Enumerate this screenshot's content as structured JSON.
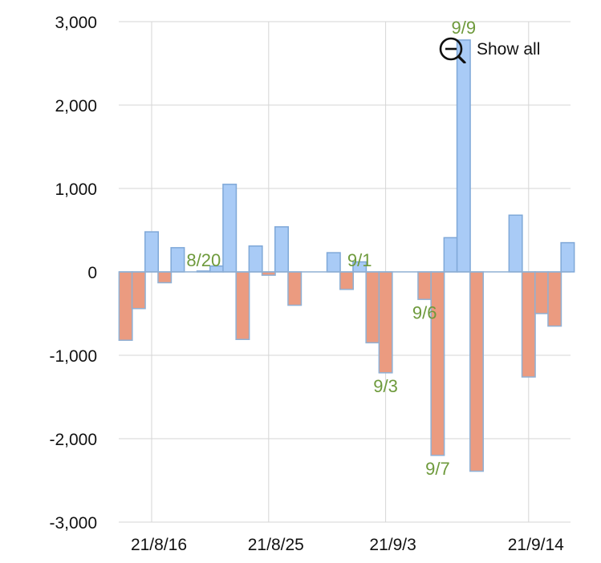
{
  "controls": {
    "show_all_label": "Show all",
    "show_all_icon": "zoom-out-icon"
  },
  "colors": {
    "positive": "#a9cbf6",
    "negative": "#eb9b80",
    "annotation": "#6e9a3c",
    "grid": "#d6d6d6"
  },
  "chart_data": {
    "type": "bar",
    "title": "",
    "xlabel": "",
    "ylabel": "",
    "ylim": [
      -3000,
      3000
    ],
    "yticks": [
      3000,
      2000,
      1000,
      0,
      -1000,
      -2000,
      -3000
    ],
    "ytick_labels": [
      "3,000",
      "2,000",
      "1,000",
      "0",
      "-1,000",
      "-2,000",
      "-3,000"
    ],
    "xtick_labels": [
      {
        "label": "21/8/16",
        "date": "2021-08-16"
      },
      {
        "label": "21/8/25",
        "date": "2021-08-25"
      },
      {
        "label": "21/9/3",
        "date": "2021-09-03"
      },
      {
        "label": "21/9/14",
        "date": "2021-09-14"
      }
    ],
    "grid": true,
    "points": [
      {
        "date": "2021-08-14",
        "value": -820
      },
      {
        "date": "2021-08-15",
        "value": -440
      },
      {
        "date": "2021-08-16",
        "value": 480
      },
      {
        "date": "2021-08-17",
        "value": -130
      },
      {
        "date": "2021-08-18",
        "value": 290
      },
      {
        "date": "2021-08-20",
        "value": 10
      },
      {
        "date": "2021-08-21",
        "value": 70
      },
      {
        "date": "2021-08-22",
        "value": 1050
      },
      {
        "date": "2021-08-23",
        "value": -810
      },
      {
        "date": "2021-08-24",
        "value": 310
      },
      {
        "date": "2021-08-25",
        "value": -40
      },
      {
        "date": "2021-08-26",
        "value": 540
      },
      {
        "date": "2021-08-27",
        "value": -400
      },
      {
        "date": "2021-08-30",
        "value": 230
      },
      {
        "date": "2021-08-31",
        "value": -210
      },
      {
        "date": "2021-09-01",
        "value": 120
      },
      {
        "date": "2021-09-02",
        "value": -850
      },
      {
        "date": "2021-09-03",
        "value": -1210
      },
      {
        "date": "2021-09-06",
        "value": -330
      },
      {
        "date": "2021-09-07",
        "value": -2200
      },
      {
        "date": "2021-09-08",
        "value": 410
      },
      {
        "date": "2021-09-09",
        "value": 2780
      },
      {
        "date": "2021-09-10",
        "value": -2390
      },
      {
        "date": "2021-09-13",
        "value": 680
      },
      {
        "date": "2021-09-14",
        "value": -1260
      },
      {
        "date": "2021-09-15",
        "value": -500
      },
      {
        "date": "2021-09-16",
        "value": -650
      },
      {
        "date": "2021-09-17",
        "value": 350
      }
    ],
    "annotations": [
      {
        "label": "8/20",
        "date": "2021-08-20"
      },
      {
        "label": "9/1",
        "date": "2021-09-01"
      },
      {
        "label": "9/3",
        "date": "2021-09-03"
      },
      {
        "label": "9/6",
        "date": "2021-09-06"
      },
      {
        "label": "9/7",
        "date": "2021-09-07"
      },
      {
        "label": "9/9",
        "date": "2021-09-09"
      }
    ]
  }
}
